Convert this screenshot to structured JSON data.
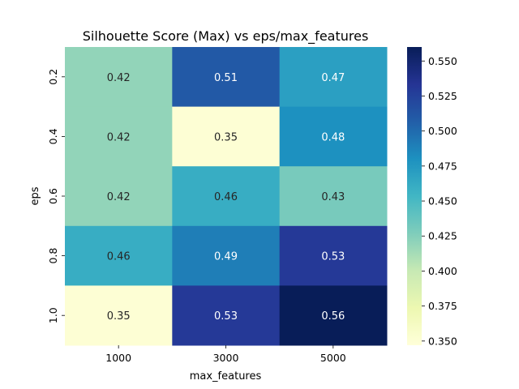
{
  "chart_data": {
    "type": "heatmap",
    "title": "Silhouette Score (Max) vs eps/max_features",
    "xlabel": "max_features",
    "ylabel": "eps",
    "x_categories": [
      "1000",
      "3000",
      "5000"
    ],
    "y_categories": [
      "0.2",
      "0.4",
      "0.6",
      "0.8",
      "1.0"
    ],
    "values": [
      [
        0.42,
        0.51,
        0.47
      ],
      [
        0.42,
        0.35,
        0.48
      ],
      [
        0.42,
        0.46,
        0.43
      ],
      [
        0.46,
        0.49,
        0.53
      ],
      [
        0.35,
        0.53,
        0.56
      ]
    ],
    "cell_labels": [
      [
        "0.42",
        "0.51",
        "0.47"
      ],
      [
        "0.42",
        "0.35",
        "0.48"
      ],
      [
        "0.42",
        "0.46",
        "0.43"
      ],
      [
        "0.46",
        "0.49",
        "0.53"
      ],
      [
        "0.35",
        "0.53",
        "0.56"
      ]
    ],
    "colormap": "YlGnBu",
    "vmin": 0.347,
    "vmax": 0.56,
    "colorbar_ticks": [
      "0.350",
      "0.375",
      "0.400",
      "0.425",
      "0.450",
      "0.475",
      "0.500",
      "0.525",
      "0.550"
    ]
  }
}
